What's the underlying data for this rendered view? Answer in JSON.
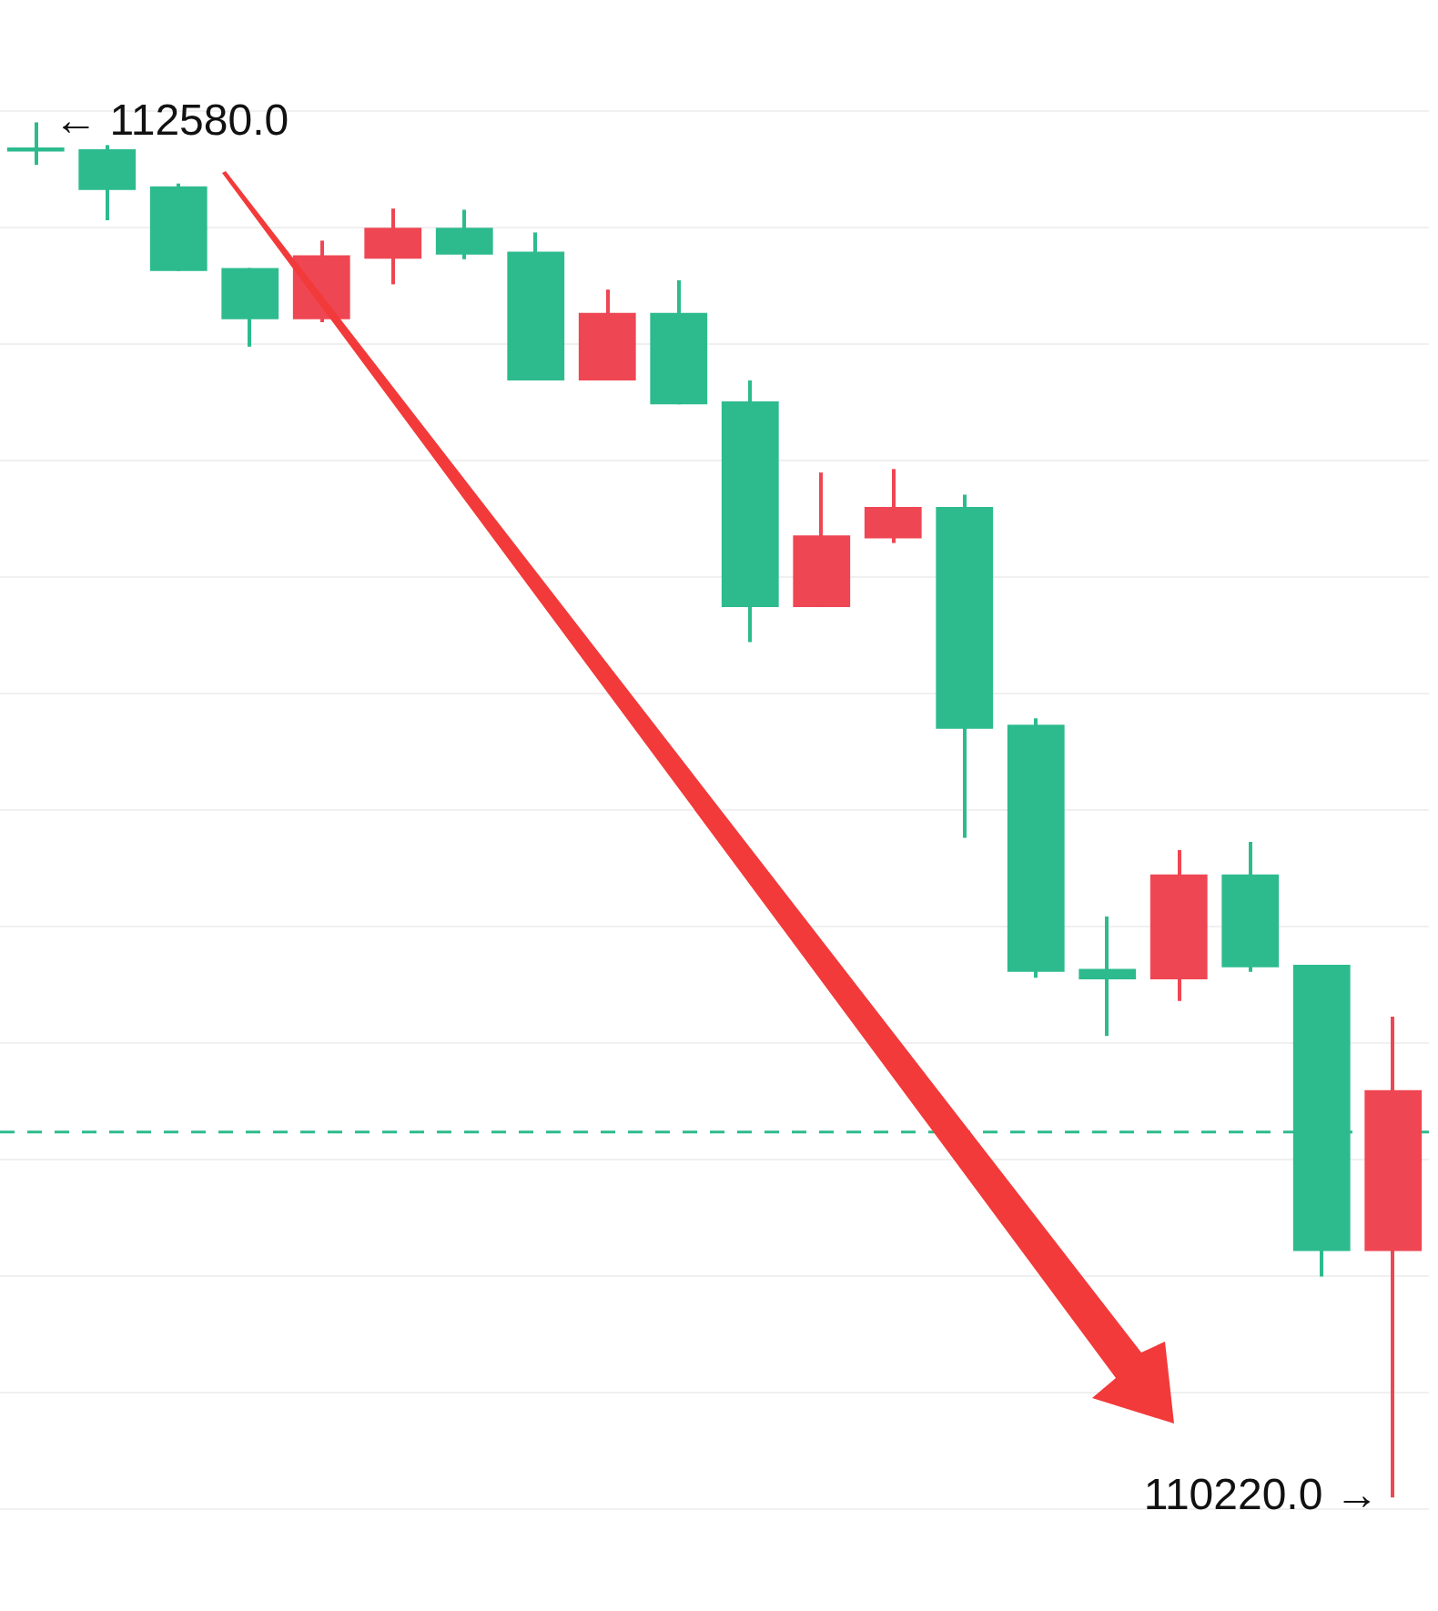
{
  "chart_data": {
    "type": "candlestick",
    "categories": [
      null,
      null,
      null,
      null,
      null,
      null,
      null,
      null,
      null,
      null,
      null,
      null,
      null,
      null,
      null,
      null,
      null,
      null,
      null,
      null
    ],
    "ohlc": [
      [
        112537,
        112580,
        112507,
        112530
      ],
      [
        112534,
        112541,
        112412,
        112464
      ],
      [
        112470,
        112475,
        112325,
        112325
      ],
      [
        112330,
        112330,
        112195,
        112242
      ],
      [
        112242,
        112377,
        112237,
        112352
      ],
      [
        112346,
        112432,
        112302,
        112399
      ],
      [
        112399,
        112430,
        112345,
        112353
      ],
      [
        112358,
        112391,
        112137,
        112137
      ],
      [
        112137,
        112293,
        112137,
        112253
      ],
      [
        112253,
        112309,
        112096,
        112096
      ],
      [
        112101,
        112137,
        111688,
        111748
      ],
      [
        111748,
        111979,
        111748,
        111871
      ],
      [
        111866,
        111985,
        111858,
        111920
      ],
      [
        111920,
        111941,
        111352,
        111539
      ],
      [
        111546,
        111557,
        111112,
        111122
      ],
      [
        111127,
        111217,
        111012,
        111109
      ],
      [
        111109,
        111331,
        111072,
        111289
      ],
      [
        111289,
        111345,
        111122,
        111130
      ],
      [
        111134,
        111134,
        110599,
        110643
      ],
      [
        110643,
        111045,
        110220,
        110919
      ]
    ],
    "colors": [
      "#2dbb8e",
      "#2dbb8e",
      "#2dbb8e",
      "#2dbb8e",
      "#ef4653",
      "#ef4653",
      "#2dbb8e",
      "#2dbb8e",
      "#ef4653",
      "#2dbb8e",
      "#2dbb8e",
      "#ef4653",
      "#ef4653",
      "#2dbb8e",
      "#2dbb8e",
      "#2dbb8e",
      "#ef4653",
      "#2dbb8e",
      "#2dbb8e",
      "#ef4653"
    ],
    "yticks": [
      {
        "value": 110200,
        "label": null
      },
      {
        "value": 110400,
        "label": null
      },
      {
        "value": 110600,
        "label": null
      },
      {
        "value": 110800,
        "label": null
      },
      {
        "value": 111000,
        "label": null
      },
      {
        "value": 111200,
        "label": null
      },
      {
        "value": 111400,
        "label": null
      },
      {
        "value": 111600,
        "label": null
      },
      {
        "value": 111800,
        "label": null
      },
      {
        "value": 112000,
        "label": null
      },
      {
        "value": 112200,
        "label": null
      },
      {
        "value": 112400,
        "label": null
      },
      {
        "value": 112600,
        "label": null
      }
    ],
    "grid": "y",
    "tick_labels": false,
    "legend": false,
    "ref_lines": [
      {
        "axis": "y",
        "value": 110847,
        "color": "#2dbb8e",
        "line_style": "dashed"
      }
    ],
    "annotations": [
      "← 112580.0",
      "110220.0 →"
    ]
  }
}
